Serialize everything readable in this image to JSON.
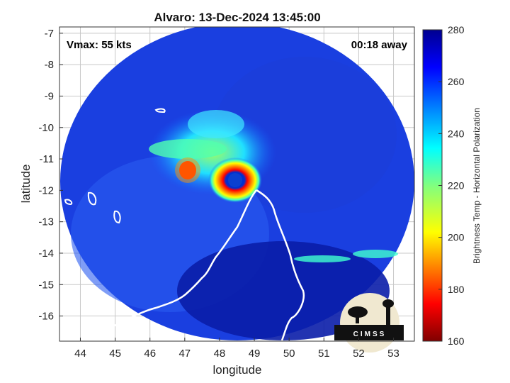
{
  "chart_data": {
    "type": "heatmap",
    "title": "Alvaro: 13-Dec-2024 13:45:00",
    "xlabel": "longitude",
    "ylabel": "latitude",
    "xlim": [
      43.4,
      53.6
    ],
    "ylim": [
      -16.8,
      -6.8
    ],
    "xticks": [
      44,
      45,
      46,
      47,
      48,
      49,
      50,
      51,
      52,
      53
    ],
    "yticks": [
      -7,
      -8,
      -9,
      -10,
      -11,
      -12,
      -13,
      -14,
      -15,
      -16
    ],
    "grid": true,
    "annotations": {
      "vmax": "Vmax: 55 kts",
      "time_offset": "00:18 away"
    },
    "storm_center": {
      "lon": 48.45,
      "lat": -11.7
    },
    "colorbar": {
      "label": "Brightness Temp - Horizontal Polarization",
      "range": [
        160,
        280
      ],
      "ticks": [
        160,
        180,
        200,
        220,
        240,
        260,
        280
      ],
      "colormap": "jet"
    },
    "logo": "CIMSS"
  },
  "colors": {
    "background": "#ffffff",
    "grid": "#b0b0b0",
    "coast": "#ffffff"
  }
}
